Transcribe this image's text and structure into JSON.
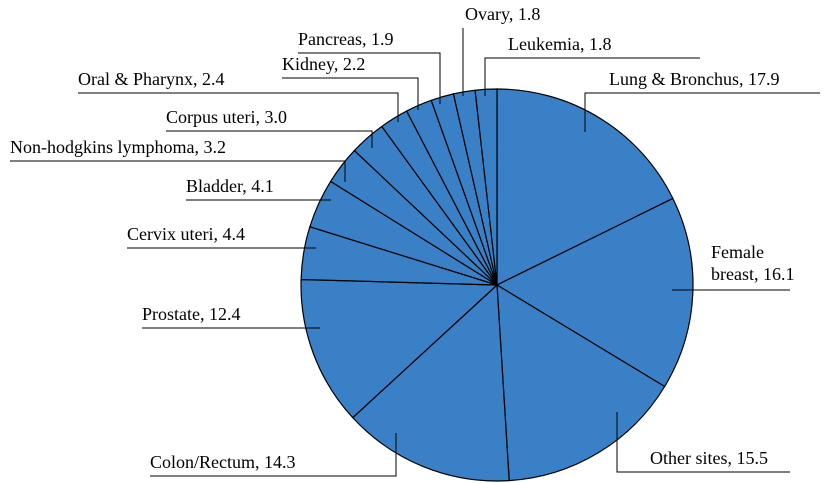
{
  "chart_data": {
    "type": "pie",
    "values": [
      17.9,
      16.1,
      15.5,
      14.3,
      12.4,
      4.4,
      4.1,
      3.2,
      3.0,
      2.4,
      2.2,
      1.9,
      1.8,
      1.8
    ],
    "value_labels": [
      "Lung & Bronchus, 17.9",
      "Female breast, 16.1",
      "Other sites, 15.5",
      "Colon/Rectum, 14.3",
      "Prostate, 12.4",
      "Cervix uteri, 4.4",
      "Bladder, 4.1",
      "Non-hodgkins lymphoma, 3.2",
      "Corpus uteri, 3.0",
      "Oral & Pharynx, 2.4",
      "Kidney, 2.2",
      "Pancreas, 1.9",
      "Ovary, 1.8",
      "Leukemia, 1.8"
    ],
    "color": "#3a80c6"
  }
}
